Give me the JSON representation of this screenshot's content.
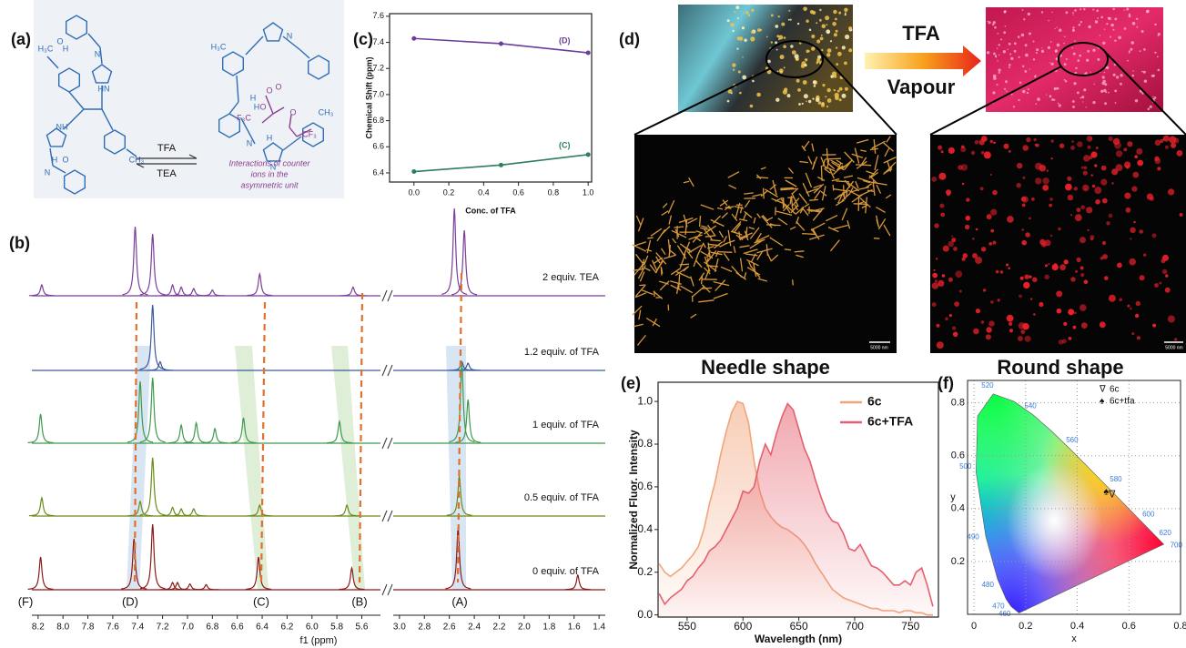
{
  "panel_labels": [
    "(a)",
    "(b)",
    "(c)",
    "(d)",
    "(e)",
    "(f)"
  ],
  "panel_a": {
    "reagent_forward": "TFA",
    "reagent_back": "TEA",
    "caption": [
      "Interactions of counter",
      "ions in the",
      "asymmetric unit"
    ],
    "atom_labels": [
      "O",
      "H",
      "N",
      "H₃C",
      "HN",
      "NH",
      "CH₃",
      "N",
      "O",
      "H",
      "N",
      "H₃C",
      "H",
      "F₃C",
      "O",
      "O",
      "H",
      "O",
      "O",
      "CF₃",
      "H",
      "N",
      "N",
      "CH₃"
    ]
  },
  "panel_d": {
    "reagent": "TFA",
    "condition": "Vapour",
    "left_caption": "Needle shape",
    "right_caption": "Round shape",
    "scale_bar": "5000 nm"
  },
  "chart_data": [
    {
      "type": "nmr",
      "xlabel": "f1 (ppm)",
      "xlim_segments": [
        [
          8.25,
          5.45
        ],
        [
          3.05,
          1.35
        ]
      ],
      "xticks": [
        8.2,
        {
          "value": 8,
          "label": "8.0"
        },
        7.8,
        7.6,
        7.4,
        7.2,
        {
          "value": 7,
          "label": "7.0"
        },
        6.8,
        6.6,
        6.4,
        6.2,
        {
          "value": 6,
          "label": "6.0"
        },
        5.8,
        5.6,
        {
          "value": 3,
          "label": "3.0"
        },
        2.8,
        2.6,
        2.4,
        2.2,
        {
          "value": 2,
          "label": "2.0"
        },
        1.8,
        1.6,
        1.4
      ],
      "signal_labels": [
        "(F)",
        "(D)",
        "(C)",
        "(B)",
        "(A)"
      ],
      "series": [
        {
          "name": "2 equiv. TEA",
          "color": "#7b3f98",
          "x": [
            8.17,
            7.42,
            7.28,
            7.12,
            7.05,
            6.95,
            6.8,
            6.42,
            5.67,
            2.56,
            2.48
          ],
          "values": [
            0.15,
            0.95,
            0.85,
            0.15,
            0.12,
            0.1,
            0.08,
            0.3,
            0.12,
            1.2,
            0.9
          ]
        },
        {
          "name": "1.2 equiv. of TFA",
          "color": "#3b5a9a",
          "x": [
            7.28,
            7.22,
            2.5,
            2.45
          ],
          "values": [
            0.9,
            0.12,
            0.12,
            0.1
          ]
        },
        {
          "name": "1 equiv. of TFA",
          "color": "#3d9a4f",
          "x": [
            8.18,
            7.38,
            7.28,
            7.05,
            6.93,
            6.78,
            6.55,
            5.78,
            2.5,
            2.45
          ],
          "values": [
            0.4,
            0.85,
            0.9,
            0.25,
            0.28,
            0.2,
            0.35,
            0.3,
            1.1,
            0.6
          ]
        },
        {
          "name": "0.5 equiv. of TFA",
          "color": "#6b8a1c",
          "x": [
            8.17,
            7.38,
            7.28,
            7.12,
            7.05,
            6.95,
            6.42,
            5.72,
            2.52
          ],
          "values": [
            0.25,
            0.2,
            0.8,
            0.12,
            0.1,
            0.1,
            0.15,
            0.15,
            0.55
          ]
        },
        {
          "name": "0 equiv. of TFA",
          "color": "#8b1a1a",
          "x": [
            8.18,
            7.43,
            7.28,
            7.12,
            7.08,
            6.98,
            6.85,
            6.43,
            5.68,
            2.53,
            1.57
          ],
          "values": [
            0.45,
            0.7,
            0.9,
            0.1,
            0.1,
            0.08,
            0.07,
            0.45,
            0.3,
            0.85,
            0.2
          ]
        }
      ]
    },
    {
      "type": "line",
      "xlabel": "Conc. of TFA",
      "ylabel": "Chemical Shift (ppm)",
      "x": [
        0,
        0.5,
        1
      ],
      "xlim": [
        -0.14,
        1.02
      ],
      "ylim": [
        6.33,
        7.62
      ],
      "xticks": [
        {
          "value": 0,
          "label": "0.0"
        },
        0.2,
        0.4,
        0.6,
        0.8,
        {
          "value": 1,
          "label": "1.0"
        }
      ],
      "yticks": [
        6.4,
        6.6,
        6.8,
        {
          "value": 7,
          "label": "7.0"
        },
        7.2,
        7.4,
        7.6
      ],
      "series": [
        {
          "name": "(D)",
          "color": "#6a3d9a",
          "values": [
            7.43,
            7.39,
            7.32
          ]
        },
        {
          "name": "(C)",
          "color": "#2e7d5b",
          "values": [
            6.41,
            6.46,
            6.54
          ]
        }
      ]
    },
    {
      "type": "area",
      "xlabel": "Wavelength (nm)",
      "ylabel": "Normalized Fluor. Intensity",
      "x": [
        525,
        530,
        535,
        540,
        545,
        550,
        555,
        560,
        565,
        570,
        575,
        580,
        585,
        590,
        595,
        600,
        605,
        610,
        615,
        620,
        625,
        630,
        635,
        640,
        645,
        650,
        655,
        660,
        665,
        670,
        675,
        680,
        685,
        690,
        695,
        700,
        705,
        710,
        715,
        720,
        725,
        730,
        735,
        740,
        745,
        750,
        755,
        760,
        765,
        770
      ],
      "xlim": [
        524,
        775
      ],
      "ylim": [
        -0.01,
        1.09
      ],
      "xticks": [
        550,
        600,
        650,
        700,
        750
      ],
      "yticks": [
        {
          "value": 0,
          "label": "0.0"
        },
        0.2,
        0.4,
        0.6,
        0.8,
        {
          "value": 1,
          "label": "1.0"
        }
      ],
      "legend": "upper right",
      "series": [
        {
          "name": "6c",
          "color": "#f2a57c",
          "values": [
            0.24,
            0.2,
            0.18,
            0.2,
            0.22,
            0.25,
            0.28,
            0.32,
            0.4,
            0.52,
            0.62,
            0.75,
            0.86,
            0.95,
            1.0,
            0.99,
            0.9,
            0.72,
            0.58,
            0.5,
            0.46,
            0.43,
            0.41,
            0.4,
            0.38,
            0.36,
            0.33,
            0.29,
            0.24,
            0.2,
            0.16,
            0.12,
            0.1,
            0.08,
            0.07,
            0.06,
            0.05,
            0.04,
            0.03,
            0.03,
            0.02,
            0.02,
            0.02,
            0.01,
            0.02,
            0.02,
            0.01,
            0.01,
            0.0,
            0.0
          ]
        },
        {
          "name": "6c+TFA",
          "color": "#e5606e",
          "values": [
            0.1,
            0.05,
            0.08,
            0.1,
            0.12,
            0.16,
            0.18,
            0.22,
            0.25,
            0.3,
            0.32,
            0.35,
            0.4,
            0.45,
            0.5,
            0.58,
            0.57,
            0.6,
            0.72,
            0.8,
            0.75,
            0.85,
            0.93,
            0.99,
            0.96,
            0.87,
            0.78,
            0.72,
            0.63,
            0.55,
            0.48,
            0.44,
            0.43,
            0.38,
            0.31,
            0.3,
            0.33,
            0.28,
            0.23,
            0.22,
            0.2,
            0.17,
            0.14,
            0.14,
            0.16,
            0.14,
            0.2,
            0.22,
            0.14,
            0.04
          ]
        }
      ]
    },
    {
      "type": "chromaticity",
      "xlabel": "x",
      "ylabel": "y",
      "xlim": [
        -0.025,
        0.8
      ],
      "ylim": [
        0,
        0.885
      ],
      "xticks": [
        0,
        0.2,
        0.4,
        0.6,
        0.8
      ],
      "yticks": [
        0.2,
        0.4,
        0.6,
        0.8
      ],
      "grid": true,
      "locus": {
        "x": [
          0.1741,
          0.144,
          0.1241,
          0.0913,
          0.0454,
          0.0082,
          0.0139,
          0.0743,
          0.1547,
          0.2296,
          0.3016,
          0.3731,
          0.4441,
          0.5125,
          0.5752,
          0.627,
          0.6915,
          0.7347
        ],
        "y": [
          0.005,
          0.0297,
          0.0578,
          0.1327,
          0.295,
          0.5384,
          0.7502,
          0.8338,
          0.8059,
          0.7543,
          0.6923,
          0.6245,
          0.5547,
          0.4866,
          0.4242,
          0.3725,
          0.3083,
          0.2653
        ],
        "labels": [
          null,
          460,
          470,
          480,
          490,
          500,
          null,
          520,
          null,
          540,
          null,
          560,
          null,
          580,
          null,
          600,
          620,
          700
        ]
      },
      "series": [
        {
          "name": "6c",
          "marker": "∇",
          "color": "#222222",
          "x": [
            0.535
          ],
          "values": [
            0.452
          ]
        },
        {
          "name": "6c+tfa",
          "marker": "♠",
          "color": "#111111",
          "x": [
            0.512
          ],
          "values": [
            0.462
          ]
        }
      ]
    }
  ]
}
